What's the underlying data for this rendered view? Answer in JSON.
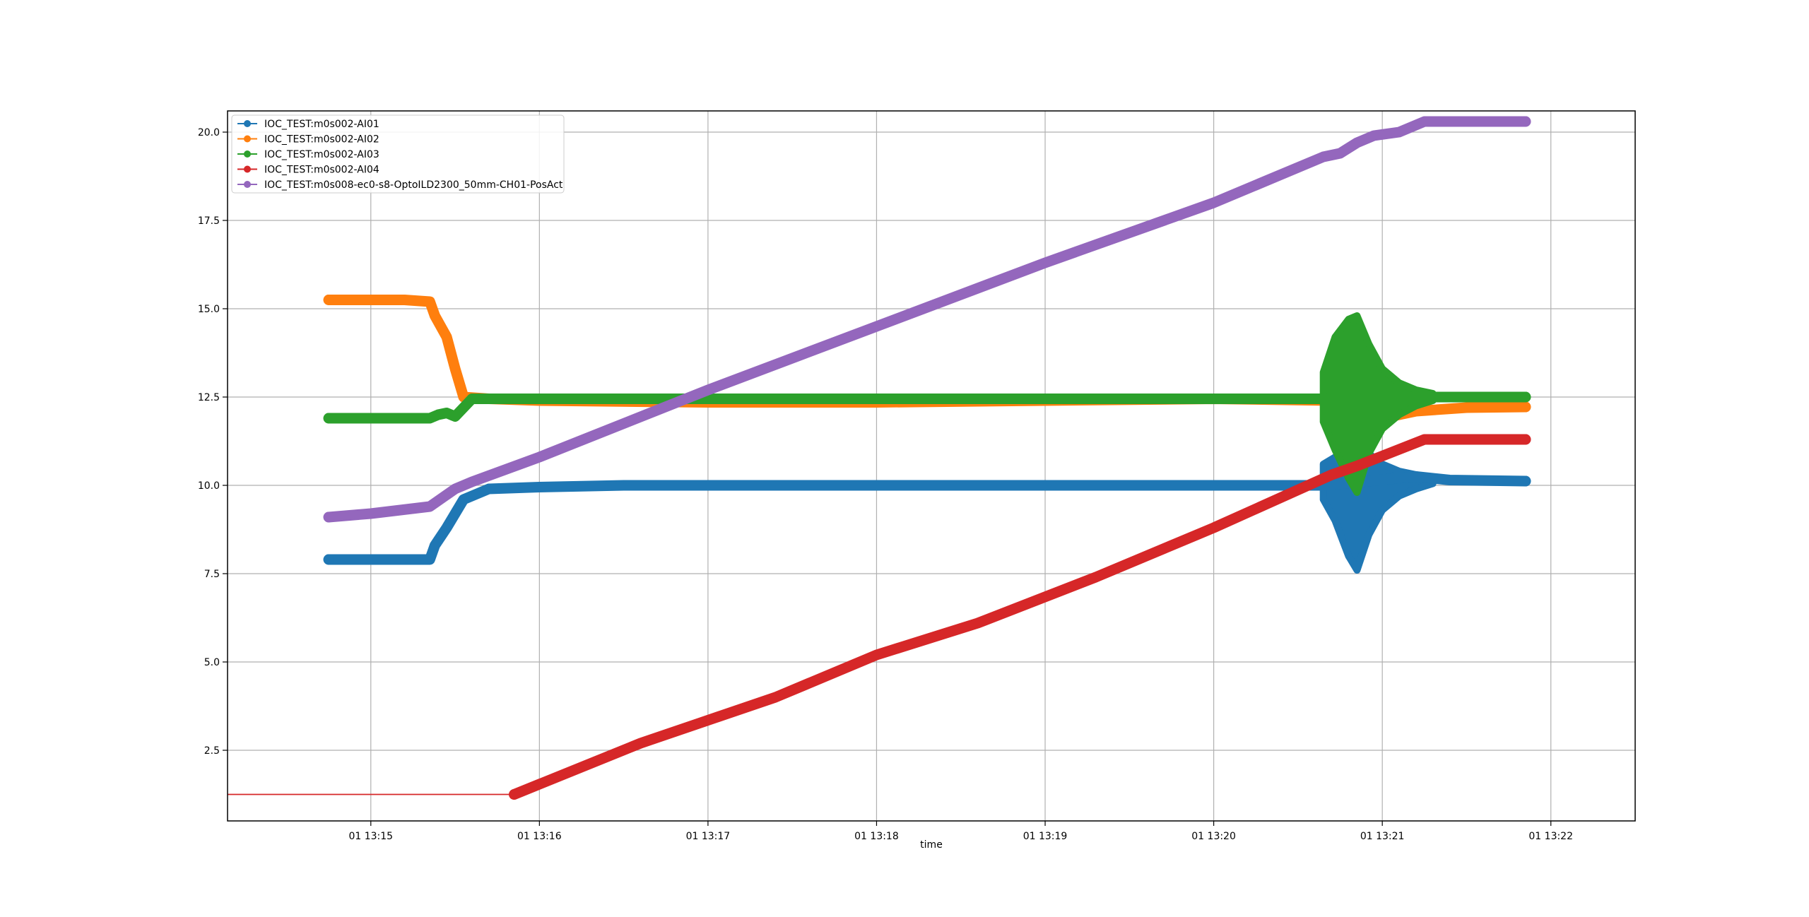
{
  "chart_data": {
    "type": "line",
    "xlabel": "time",
    "ylabel": "",
    "x_unit": "minutes after 01 13:00",
    "xlim": [
      14.15,
      22.5
    ],
    "ylim": [
      0.5,
      20.6
    ],
    "grid": true,
    "legend_position": "top-left",
    "xticks": [
      {
        "value": 15,
        "label": "01 13:15"
      },
      {
        "value": 16,
        "label": "01 13:16"
      },
      {
        "value": 17,
        "label": "01 13:17"
      },
      {
        "value": 18,
        "label": "01 13:18"
      },
      {
        "value": 19,
        "label": "01 13:19"
      },
      {
        "value": 20,
        "label": "01 13:20"
      },
      {
        "value": 21,
        "label": "01 13:21"
      },
      {
        "value": 22,
        "label": "01 13:22"
      }
    ],
    "yticks": [
      {
        "value": 2.5,
        "label": "2.5"
      },
      {
        "value": 5.0,
        "label": "5.0"
      },
      {
        "value": 7.5,
        "label": "7.5"
      },
      {
        "value": 10.0,
        "label": "10.0"
      },
      {
        "value": 12.5,
        "label": "12.5"
      },
      {
        "value": 15.0,
        "label": "15.0"
      },
      {
        "value": 17.5,
        "label": "17.5"
      },
      {
        "value": 20.0,
        "label": "20.0"
      }
    ],
    "series": [
      {
        "name": "IOC_TEST:m0s002-AI01",
        "color": "#1f77b4",
        "x": [
          14.75,
          15.1,
          15.35,
          15.38,
          15.45,
          15.55,
          15.7,
          16.0,
          16.5,
          17.0,
          18.0,
          19.0,
          20.0,
          20.65,
          21.2,
          21.4,
          21.85
        ],
        "y": [
          7.9,
          7.9,
          7.9,
          8.3,
          8.8,
          9.6,
          9.9,
          9.95,
          10.0,
          10.0,
          10.0,
          10.0,
          10.0,
          10.0,
          10.25,
          10.15,
          10.12
        ],
        "envelope": {
          "x": [
            20.65,
            20.72,
            20.8,
            20.85,
            20.92,
            21.0,
            21.1,
            21.2,
            21.3
          ],
          "upper": [
            10.6,
            10.8,
            11.0,
            11.2,
            10.9,
            10.6,
            10.4,
            10.3,
            10.2
          ],
          "lower": [
            9.6,
            9.0,
            8.0,
            7.6,
            8.6,
            9.3,
            9.7,
            9.9,
            10.05
          ]
        }
      },
      {
        "name": "IOC_TEST:m0s002-AI02",
        "color": "#ff7f0e",
        "x": [
          14.75,
          15.0,
          15.2,
          15.35,
          15.38,
          15.45,
          15.5,
          15.55,
          15.7,
          16.0,
          17.0,
          18.0,
          19.0,
          20.0,
          20.7,
          20.8,
          20.9,
          21.0,
          21.2,
          21.5,
          21.85
        ],
        "y": [
          15.25,
          15.25,
          15.25,
          15.2,
          14.8,
          14.2,
          13.3,
          12.5,
          12.45,
          12.4,
          12.35,
          12.35,
          12.4,
          12.45,
          12.4,
          11.3,
          11.6,
          11.9,
          12.1,
          12.2,
          12.22
        ],
        "envelope": null
      },
      {
        "name": "IOC_TEST:m0s002-AI03",
        "color": "#2ca02c",
        "x": [
          14.75,
          15.2,
          15.35,
          15.4,
          15.45,
          15.5,
          15.6,
          15.7,
          16.0,
          17.0,
          18.0,
          19.0,
          20.0,
          20.65,
          21.3,
          21.5,
          21.85
        ],
        "y": [
          11.9,
          11.9,
          11.9,
          12.0,
          12.05,
          11.95,
          12.45,
          12.45,
          12.45,
          12.45,
          12.45,
          12.45,
          12.45,
          12.45,
          12.5,
          12.5,
          12.5
        ],
        "envelope": {
          "x": [
            20.65,
            20.72,
            20.8,
            20.85,
            20.92,
            21.0,
            21.1,
            21.2,
            21.3
          ],
          "upper": [
            13.2,
            14.2,
            14.7,
            14.8,
            14.0,
            13.3,
            12.9,
            12.7,
            12.6
          ],
          "lower": [
            11.8,
            11.0,
            10.2,
            9.8,
            10.9,
            11.6,
            12.0,
            12.25,
            12.4
          ]
        }
      },
      {
        "name": "IOC_TEST:m0s002-AI04",
        "color": "#d62728",
        "x": [
          14.15,
          15.85,
          16.6,
          17.4,
          18.0,
          18.6,
          19.3,
          20.0,
          20.7,
          20.85,
          21.25,
          21.85
        ],
        "y": [
          1.25,
          1.25,
          2.7,
          4.0,
          5.2,
          6.1,
          7.4,
          8.8,
          10.3,
          10.55,
          11.3,
          11.3
        ],
        "thin_until": 15.85,
        "envelope": null
      },
      {
        "name": "IOC_TEST:m0s008-ec0-s8-OptoILD2300_50mm-CH01-PosAct",
        "color": "#9467bd",
        "x": [
          14.75,
          15.0,
          15.35,
          15.5,
          15.6,
          16.0,
          17.0,
          18.0,
          19.0,
          20.0,
          20.65,
          20.75,
          20.85,
          20.95,
          21.1,
          21.25,
          21.5,
          21.85
        ],
        "y": [
          9.1,
          9.2,
          9.4,
          9.9,
          10.1,
          10.8,
          12.7,
          14.5,
          16.3,
          18.0,
          19.3,
          19.4,
          19.7,
          19.9,
          20.0,
          20.3,
          20.3,
          20.3
        ],
        "envelope": null
      }
    ]
  }
}
